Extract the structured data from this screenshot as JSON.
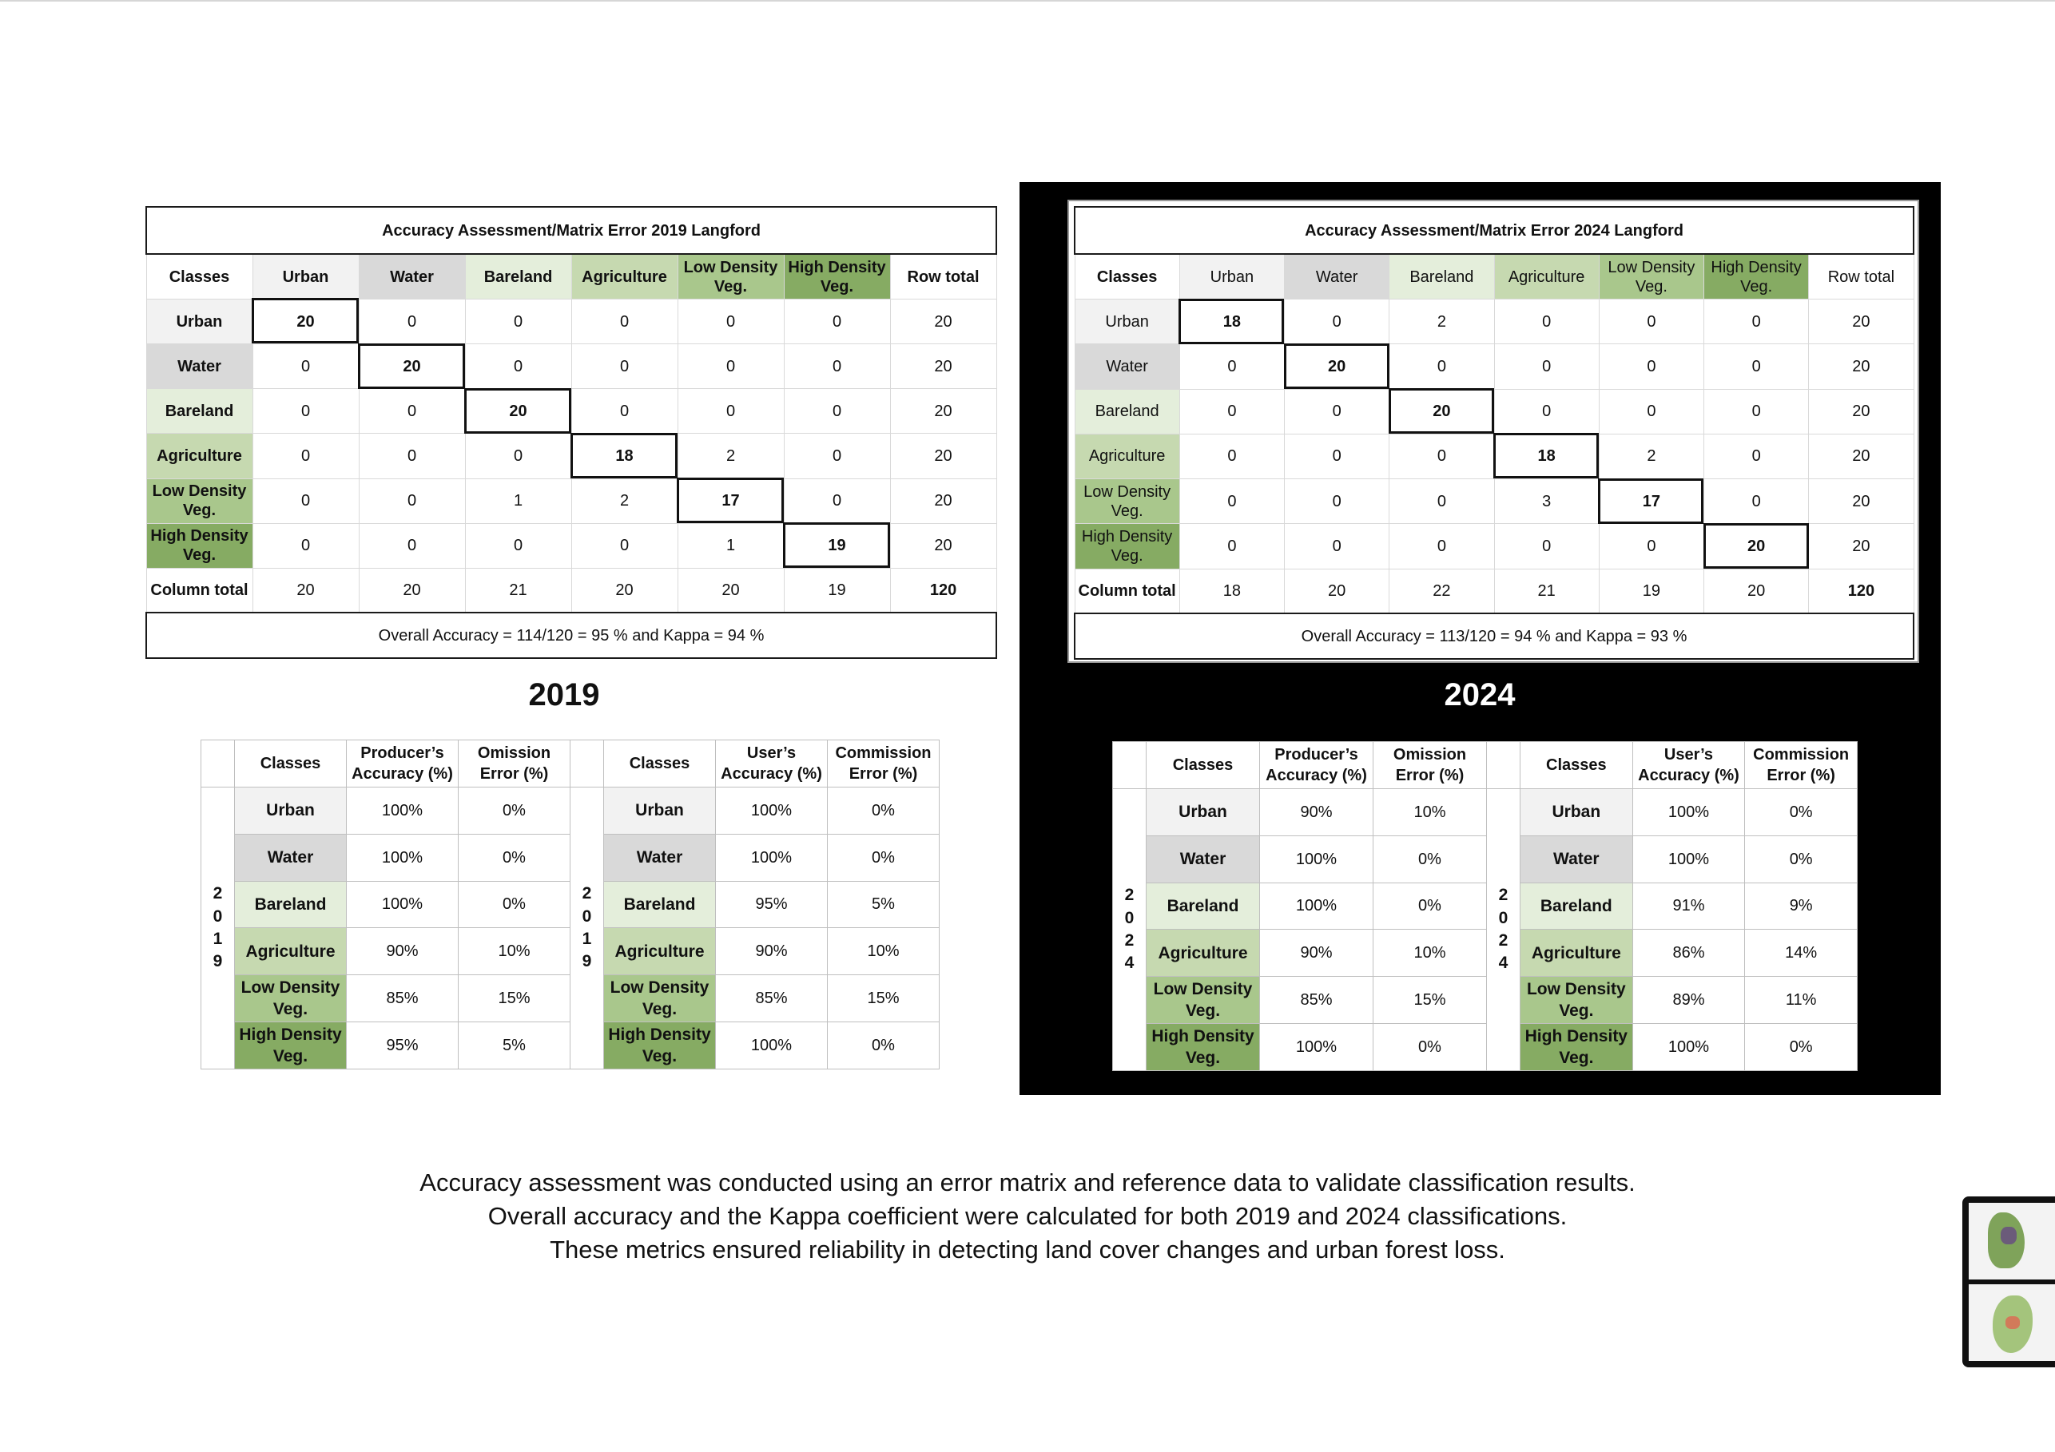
{
  "classes": [
    "Urban",
    "Water",
    "Bareland",
    "Agriculture",
    "Low Density Veg.",
    "High Density Veg."
  ],
  "matrix2019": {
    "title": "Accuracy Assessment/Matrix Error 2019 Langford",
    "header_classes": "Classes",
    "header_row_total": "Row total",
    "col_total_label": "Column total",
    "rows": [
      [
        20,
        0,
        0,
        0,
        0,
        0,
        20
      ],
      [
        0,
        20,
        0,
        0,
        0,
        0,
        20
      ],
      [
        0,
        0,
        20,
        0,
        0,
        0,
        20
      ],
      [
        0,
        0,
        0,
        18,
        2,
        0,
        20
      ],
      [
        0,
        0,
        1,
        2,
        17,
        0,
        20
      ],
      [
        0,
        0,
        0,
        0,
        1,
        19,
        20
      ]
    ],
    "col_totals": [
      20,
      20,
      21,
      20,
      20,
      19,
      120
    ],
    "footer": "Overall Accuracy = 114/120 = 95 % and Kappa = 94 %"
  },
  "matrix2024": {
    "title": "Accuracy Assessment/Matrix Error 2024 Langford",
    "header_classes": "Classes",
    "header_row_total": "Row total",
    "col_total_label": "Column total",
    "rows": [
      [
        18,
        0,
        2,
        0,
        0,
        0,
        20
      ],
      [
        0,
        20,
        0,
        0,
        0,
        0,
        20
      ],
      [
        0,
        0,
        20,
        0,
        0,
        0,
        20
      ],
      [
        0,
        0,
        0,
        18,
        2,
        0,
        20
      ],
      [
        0,
        0,
        0,
        3,
        17,
        0,
        20
      ],
      [
        0,
        0,
        0,
        0,
        0,
        20,
        20
      ]
    ],
    "col_totals": [
      18,
      20,
      22,
      21,
      19,
      20,
      120
    ],
    "footer": "Overall Accuracy = 113/120 = 94 % and Kappa = 93 %"
  },
  "year_labels": {
    "y2019": "2019",
    "y2024": "2024"
  },
  "acc2019": {
    "year_letters": [
      "2",
      "0",
      "1",
      "9"
    ],
    "producer": {
      "headers": [
        "Classes",
        "Producer’s Accuracy (%)",
        "Omission Error (%)"
      ],
      "rows": [
        [
          "100%",
          "0%"
        ],
        [
          "100%",
          "0%"
        ],
        [
          "100%",
          "0%"
        ],
        [
          "90%",
          "10%"
        ],
        [
          "85%",
          "15%"
        ],
        [
          "95%",
          "5%"
        ]
      ]
    },
    "user": {
      "headers": [
        "Classes",
        "User’s Accuracy (%)",
        "Commission Error (%)"
      ],
      "rows": [
        [
          "100%",
          "0%"
        ],
        [
          "100%",
          "0%"
        ],
        [
          "95%",
          "5%"
        ],
        [
          "90%",
          "10%"
        ],
        [
          "85%",
          "15%"
        ],
        [
          "100%",
          "0%"
        ]
      ]
    }
  },
  "acc2024": {
    "year_letters": [
      "2",
      "0",
      "2",
      "4"
    ],
    "producer": {
      "headers": [
        "Classes",
        "Producer’s Accuracy (%)",
        "Omission Error (%)"
      ],
      "rows": [
        [
          "90%",
          "10%"
        ],
        [
          "100%",
          "0%"
        ],
        [
          "100%",
          "0%"
        ],
        [
          "90%",
          "10%"
        ],
        [
          "85%",
          "15%"
        ],
        [
          "100%",
          "0%"
        ]
      ]
    },
    "user": {
      "headers": [
        "Classes",
        "User’s Accuracy (%)",
        "Commission Error (%)"
      ],
      "rows": [
        [
          "100%",
          "0%"
        ],
        [
          "100%",
          "0%"
        ],
        [
          "91%",
          "9%"
        ],
        [
          "86%",
          "14%"
        ],
        [
          "89%",
          "11%"
        ],
        [
          "100%",
          "0%"
        ]
      ]
    }
  },
  "caption": [
    "Accuracy assessment was conducted using an error matrix and reference data to validate classification results.",
    "Overall accuracy and the Kappa coefficient were calculated for both 2019 and 2024 classifications.",
    "These metrics ensured reliability in detecting land cover changes and urban forest loss."
  ],
  "colors": {
    "urban": "#f2f2f2",
    "water": "#d9d9d9",
    "bareland": "#e4eedb",
    "agriculture": "#c6d9b0",
    "low_density": "#a9c78c",
    "high_density": "#86ab63",
    "panel_background": "#000000"
  }
}
